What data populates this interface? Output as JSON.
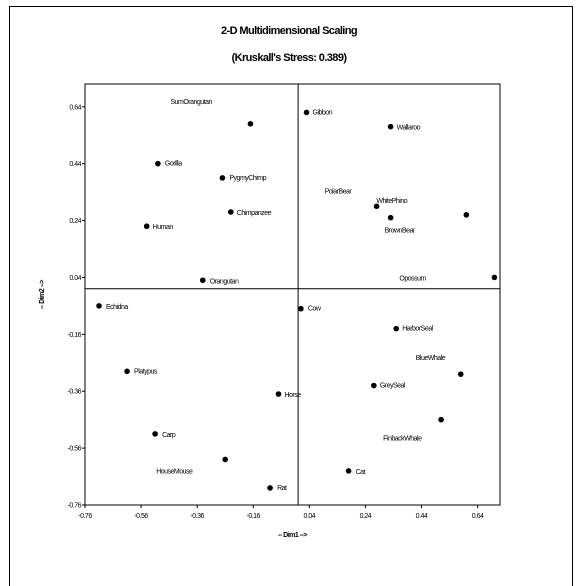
{
  "chart_data": {
    "type": "scatter",
    "title": "2-D Multidimensional Scaling",
    "subtitle": "(Kruskall's Stress: 0.389)",
    "xlabel": "-- Dim1 -->",
    "ylabel": "-- Dim2 -->",
    "xlim": [
      -0.76,
      0.72
    ],
    "ylim": [
      -0.76,
      0.72
    ],
    "xticks": [
      "-0.76",
      "-0.56",
      "-0.36",
      "-0.16",
      "0.04",
      "0.24",
      "0.44",
      "0.64"
    ],
    "yticks": [
      "-0.76",
      "-0.56",
      "-0.36",
      "-0.16",
      "0.04",
      "0.24",
      "0.44",
      "0.64"
    ],
    "grid": false,
    "points": [
      {
        "label": "SumOrangutan",
        "x": -0.17,
        "y": 0.58
      },
      {
        "label": "Gibbon",
        "x": 0.03,
        "y": 0.62
      },
      {
        "label": "Wallaroo",
        "x": 0.33,
        "y": 0.57
      },
      {
        "label": "Gorilla",
        "x": -0.5,
        "y": 0.44
      },
      {
        "label": "PygmyChimp",
        "x": -0.27,
        "y": 0.39
      },
      {
        "label": "PolarBear",
        "x": 0.28,
        "y": 0.29
      },
      {
        "label": "WhitePhino",
        "x": 0.6,
        "y": 0.26
      },
      {
        "label": "BrownBear",
        "x": 0.33,
        "y": 0.25
      },
      {
        "label": "Chimpanzee",
        "x": -0.24,
        "y": 0.27
      },
      {
        "label": "Human",
        "x": -0.54,
        "y": 0.22
      },
      {
        "label": "Orangutan",
        "x": -0.34,
        "y": 0.03
      },
      {
        "label": "Opossum",
        "x": 0.7,
        "y": 0.04
      },
      {
        "label": "Echidna",
        "x": -0.71,
        "y": -0.06
      },
      {
        "label": "Cow",
        "x": 0.01,
        "y": -0.07
      },
      {
        "label": "HarborSeal",
        "x": 0.35,
        "y": -0.14
      },
      {
        "label": "BlueWhale",
        "x": 0.58,
        "y": -0.3
      },
      {
        "label": "Platypus",
        "x": -0.61,
        "y": -0.29
      },
      {
        "label": "GreySeal",
        "x": 0.27,
        "y": -0.34
      },
      {
        "label": "Horse",
        "x": -0.07,
        "y": -0.37
      },
      {
        "label": "FinbackWhale",
        "x": 0.51,
        "y": -0.46
      },
      {
        "label": "Carp",
        "x": -0.51,
        "y": -0.51
      },
      {
        "label": "HouseMouse",
        "x": -0.26,
        "y": -0.6
      },
      {
        "label": "Cat",
        "x": 0.18,
        "y": -0.64
      },
      {
        "label": "Rat",
        "x": -0.1,
        "y": -0.7
      }
    ]
  }
}
